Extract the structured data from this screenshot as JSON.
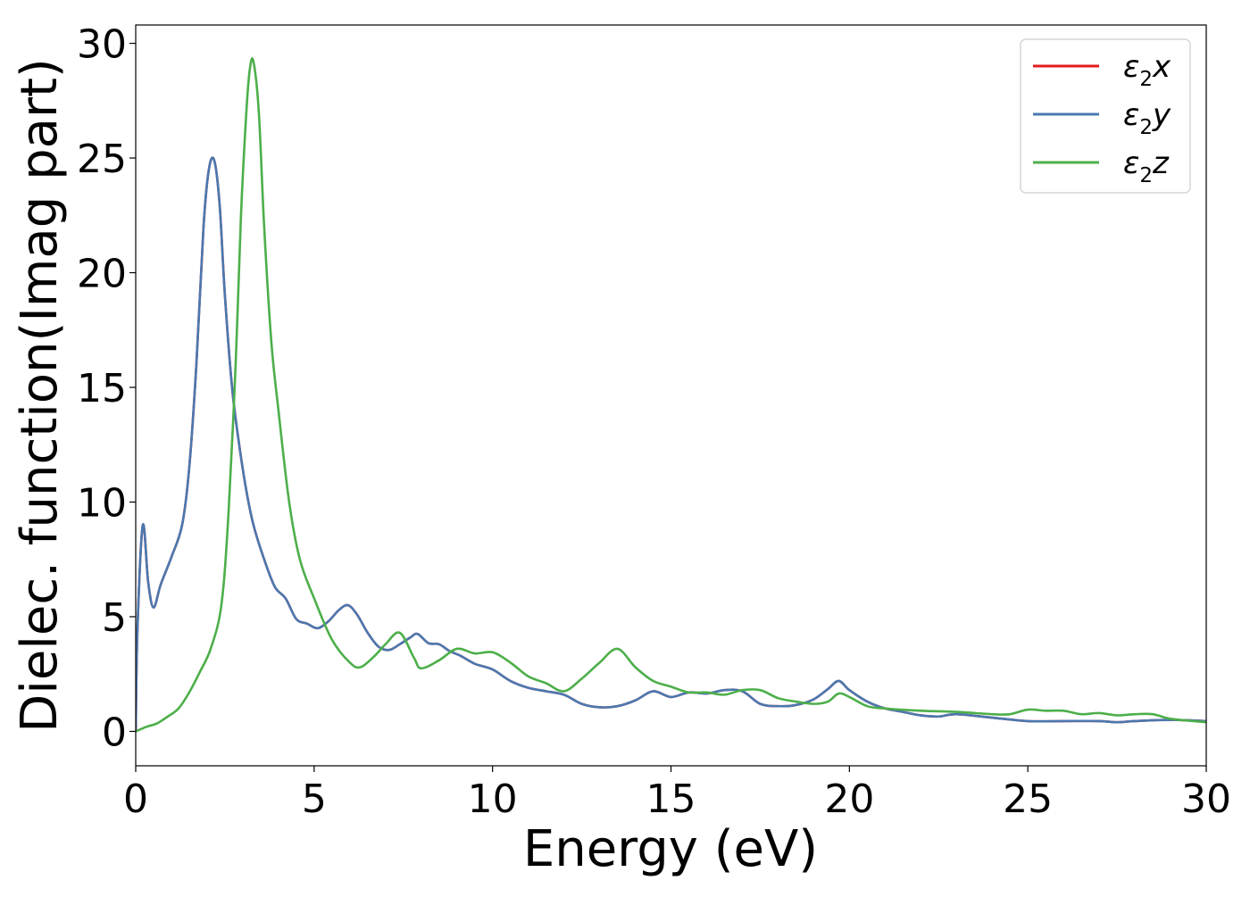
{
  "chart_data": {
    "type": "line",
    "title": "",
    "xlabel": "Energy (eV)",
    "ylabel": "Dielec. function(Imag part)",
    "xlim": [
      0,
      30
    ],
    "ylim": [
      -1.5,
      30.8
    ],
    "xticks": [
      0,
      5,
      10,
      15,
      20,
      25,
      30
    ],
    "yticks": [
      0,
      5,
      10,
      15,
      20,
      25,
      30
    ],
    "grid": false,
    "legend_position": "top-right",
    "series": [
      {
        "name": "ε₂x",
        "legend_base": "ε",
        "legend_sub": "2",
        "legend_suffix": "x",
        "color": "#e41a1c",
        "x": [
          0,
          0.05,
          0.2,
          0.35,
          0.5,
          0.7,
          1.0,
          1.3,
          1.5,
          1.7,
          1.9,
          2.05,
          2.2,
          2.35,
          2.5,
          2.7,
          2.9,
          3.1,
          3.3,
          3.6,
          3.9,
          4.2,
          4.5,
          4.8,
          5.1,
          5.4,
          5.7,
          5.95,
          6.2,
          6.5,
          6.8,
          7.1,
          7.4,
          7.7,
          7.9,
          8.2,
          8.5,
          8.8,
          9.1,
          9.5,
          10.0,
          10.5,
          11.0,
          11.5,
          12.0,
          12.5,
          13.0,
          13.5,
          14.0,
          14.5,
          15.0,
          15.5,
          16.0,
          16.5,
          17.0,
          17.5,
          18.0,
          18.5,
          19.0,
          19.4,
          19.7,
          20.0,
          20.5,
          21.0,
          21.5,
          22.0,
          22.5,
          23.0,
          24.0,
          25.0,
          26.0,
          27.0,
          27.5,
          28.0,
          29.0,
          30.0
        ],
        "y": [
          0.0,
          4.5,
          9.0,
          6.5,
          5.4,
          6.4,
          7.6,
          9.0,
          11.5,
          16.0,
          22.0,
          24.5,
          24.9,
          23.0,
          19.0,
          15.0,
          12.5,
          10.5,
          9.0,
          7.5,
          6.3,
          5.8,
          4.9,
          4.7,
          4.5,
          4.8,
          5.3,
          5.5,
          5.1,
          4.3,
          3.7,
          3.55,
          3.8,
          4.1,
          4.25,
          3.85,
          3.8,
          3.5,
          3.3,
          2.95,
          2.7,
          2.2,
          1.9,
          1.75,
          1.6,
          1.2,
          1.05,
          1.1,
          1.35,
          1.75,
          1.5,
          1.7,
          1.65,
          1.8,
          1.75,
          1.2,
          1.1,
          1.15,
          1.4,
          1.85,
          2.2,
          1.8,
          1.3,
          1.0,
          0.85,
          0.7,
          0.65,
          0.75,
          0.6,
          0.45,
          0.45,
          0.45,
          0.4,
          0.45,
          0.5,
          0.45
        ]
      },
      {
        "name": "ε₂y",
        "legend_base": "ε",
        "legend_sub": "2",
        "legend_suffix": "y",
        "color": "#4a78b0",
        "x": [
          0,
          0.05,
          0.2,
          0.35,
          0.5,
          0.7,
          1.0,
          1.3,
          1.5,
          1.7,
          1.9,
          2.05,
          2.2,
          2.35,
          2.5,
          2.7,
          2.9,
          3.1,
          3.3,
          3.6,
          3.9,
          4.2,
          4.5,
          4.8,
          5.1,
          5.4,
          5.7,
          5.95,
          6.2,
          6.5,
          6.8,
          7.1,
          7.4,
          7.7,
          7.9,
          8.2,
          8.5,
          8.8,
          9.1,
          9.5,
          10.0,
          10.5,
          11.0,
          11.5,
          12.0,
          12.5,
          13.0,
          13.5,
          14.0,
          14.5,
          15.0,
          15.5,
          16.0,
          16.5,
          17.0,
          17.5,
          18.0,
          18.5,
          19.0,
          19.4,
          19.7,
          20.0,
          20.5,
          21.0,
          21.5,
          22.0,
          22.5,
          23.0,
          24.0,
          25.0,
          26.0,
          27.0,
          27.5,
          28.0,
          29.0,
          30.0
        ],
        "y": [
          0.0,
          4.5,
          9.0,
          6.5,
          5.4,
          6.4,
          7.6,
          9.0,
          11.5,
          16.0,
          22.0,
          24.5,
          24.9,
          23.0,
          19.0,
          15.0,
          12.5,
          10.5,
          9.0,
          7.5,
          6.3,
          5.8,
          4.9,
          4.7,
          4.5,
          4.8,
          5.3,
          5.5,
          5.1,
          4.3,
          3.7,
          3.55,
          3.8,
          4.1,
          4.25,
          3.85,
          3.8,
          3.5,
          3.3,
          2.95,
          2.7,
          2.2,
          1.9,
          1.75,
          1.6,
          1.2,
          1.05,
          1.1,
          1.35,
          1.75,
          1.5,
          1.7,
          1.65,
          1.8,
          1.75,
          1.2,
          1.1,
          1.15,
          1.4,
          1.85,
          2.2,
          1.8,
          1.3,
          1.0,
          0.85,
          0.7,
          0.65,
          0.75,
          0.6,
          0.45,
          0.45,
          0.45,
          0.4,
          0.45,
          0.5,
          0.45
        ]
      },
      {
        "name": "ε₂z",
        "legend_base": "ε",
        "legend_sub": "2",
        "legend_suffix": "z",
        "color": "#4daf4a",
        "x": [
          0,
          0.3,
          0.6,
          0.9,
          1.2,
          1.5,
          1.8,
          2.1,
          2.4,
          2.6,
          2.8,
          2.95,
          3.1,
          3.2,
          3.3,
          3.45,
          3.6,
          3.8,
          4.0,
          4.3,
          4.6,
          5.0,
          5.5,
          6.0,
          6.3,
          6.7,
          7.0,
          7.4,
          7.8,
          8.0,
          8.5,
          9.0,
          9.5,
          10.0,
          10.5,
          11.0,
          11.5,
          12.0,
          12.5,
          13.0,
          13.5,
          14.0,
          14.5,
          15.0,
          15.5,
          16.0,
          16.5,
          17.0,
          17.5,
          18.0,
          18.5,
          19.0,
          19.4,
          19.7,
          20.0,
          20.5,
          21.0,
          22.0,
          23.0,
          24.0,
          24.5,
          25.0,
          25.5,
          26.0,
          26.5,
          27.0,
          27.5,
          28.0,
          28.5,
          29.0,
          30.0
        ],
        "y": [
          0.0,
          0.2,
          0.35,
          0.65,
          1.0,
          1.7,
          2.6,
          3.6,
          5.5,
          9.5,
          16.0,
          22.5,
          27.0,
          28.9,
          29.2,
          27.0,
          22.0,
          17.0,
          14.0,
          10.0,
          7.5,
          5.8,
          4.0,
          3.0,
          2.8,
          3.3,
          3.8,
          4.3,
          3.2,
          2.75,
          3.1,
          3.6,
          3.4,
          3.45,
          3.0,
          2.4,
          2.1,
          1.75,
          2.3,
          3.0,
          3.6,
          2.8,
          2.2,
          1.95,
          1.7,
          1.7,
          1.6,
          1.8,
          1.8,
          1.45,
          1.3,
          1.2,
          1.3,
          1.65,
          1.5,
          1.1,
          1.0,
          0.9,
          0.85,
          0.75,
          0.75,
          0.95,
          0.9,
          0.9,
          0.75,
          0.8,
          0.7,
          0.75,
          0.75,
          0.55,
          0.4
        ]
      }
    ]
  }
}
